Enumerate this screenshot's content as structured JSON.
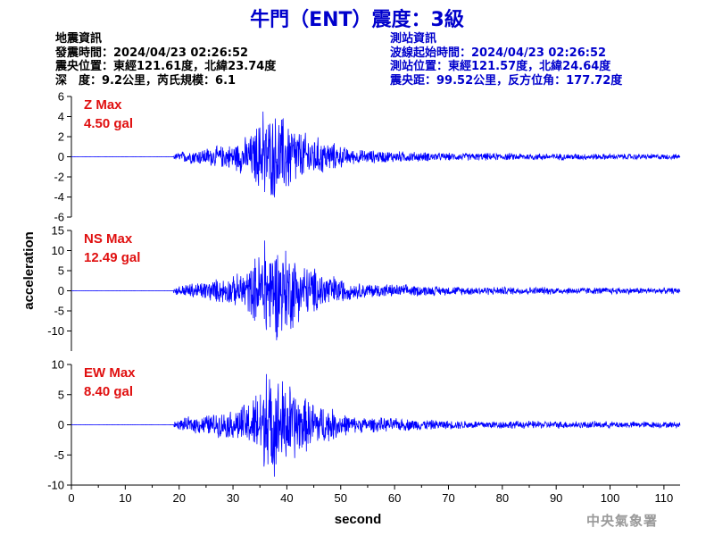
{
  "title": "牛門（ENT）震度：3級",
  "quake_info": {
    "heading": "地震資訊",
    "origin_time": "發震時間：2024/04/23 02:26:52",
    "epicenter": "震央位置：東經121.61度，北緯23.74度",
    "depth_magnitude": "深　度：9.2公里，芮氏規模：6.1"
  },
  "station_info": {
    "heading": "測站資訊",
    "wave_start_time": "波線起始時間：2024/04/23 02:26:52",
    "station_location": "測站位置：東經121.57度，北緯24.64度",
    "epicentral_distance": "震央距：99.52公里，反方位角：177.72度"
  },
  "credit": "中央氣象署",
  "colors": {
    "trace": "#0000ff",
    "max_label": "#e01010",
    "title": "#0000cc"
  },
  "chart_data": {
    "type": "line",
    "xlabel": "second",
    "ylabel": "acceleration",
    "xlim": [
      0,
      113
    ],
    "x_ticks": [
      0,
      10,
      20,
      30,
      40,
      50,
      60,
      70,
      80,
      90,
      100,
      110
    ],
    "grid": false,
    "panels": [
      {
        "component": "Z",
        "max_label": "Z Max",
        "max_value": "4.50 gal",
        "peak": 4.5,
        "ylim": [
          -6,
          6
        ],
        "y_ticks": [
          -6,
          -4,
          -2,
          0,
          2,
          4,
          6
        ]
      },
      {
        "component": "NS",
        "max_label": "NS Max",
        "max_value": "12.49 gal",
        "peak": 12.49,
        "ylim": [
          -15,
          15
        ],
        "y_ticks": [
          -10,
          -5,
          0,
          5,
          10,
          15
        ]
      },
      {
        "component": "EW",
        "max_label": "EW Max",
        "max_value": "8.40 gal",
        "peak": 8.4,
        "ylim": [
          -10,
          10
        ],
        "y_ticks": [
          -10,
          -5,
          0,
          5,
          10
        ]
      }
    ]
  }
}
